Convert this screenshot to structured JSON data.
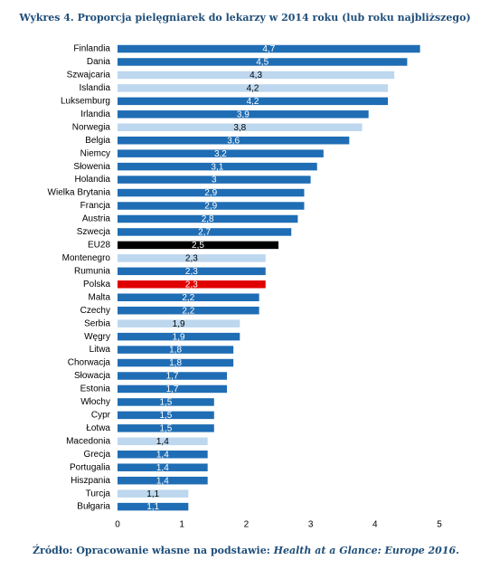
{
  "chart_data": {
    "type": "hbar",
    "title": "Wykres 4. Proporcja pielęgniarek do lekarzy w 2014 roku (lub roku najbliższego)",
    "categories": [
      "Finlandia",
      "Dania",
      "Szwajcaria",
      "Islandia",
      "Luksemburg",
      "Irlandia",
      "Norwegia",
      "Belgia",
      "Niemcy",
      "Słowenia",
      "Holandia",
      "Wielka Brytania",
      "Francja",
      "Austria",
      "Szwecja",
      "EU28",
      "Montenegro",
      "Rumunia",
      "Polska",
      "Malta",
      "Czechy",
      "Serbia",
      "Węgry",
      "Litwa",
      "Chorwacja",
      "Słowacja",
      "Estonia",
      "Włochy",
      "Cypr",
      "Łotwa",
      "Macedonia",
      "Grecja",
      "Portugalia",
      "Hiszpania",
      "Turcja",
      "Bułgaria"
    ],
    "values": [
      4.7,
      4.5,
      4.3,
      4.2,
      4.2,
      3.9,
      3.8,
      3.6,
      3.2,
      3.1,
      3,
      2.9,
      2.9,
      2.8,
      2.7,
      2.5,
      2.3,
      2.3,
      2.3,
      2.2,
      2.2,
      1.9,
      1.9,
      1.8,
      1.8,
      1.7,
      1.7,
      1.5,
      1.5,
      1.5,
      1.4,
      1.4,
      1.4,
      1.4,
      1.1,
      1.1
    ],
    "value_labels": [
      "4,7",
      "4,5",
      "4,3",
      "4,2",
      "4,2",
      "3,9",
      "3,8",
      "3,6",
      "3,2",
      "3,1",
      "3",
      "2,9",
      "2,9",
      "2,8",
      "2,7",
      "2,5",
      "2,3",
      "2,3",
      "2,3",
      "2,2",
      "2,2",
      "1,9",
      "1,9",
      "1,8",
      "1,8",
      "1,7",
      "1,7",
      "1,5",
      "1,5",
      "1,5",
      "1,4",
      "1,4",
      "1,4",
      "1,4",
      "1,1",
      "1,1"
    ],
    "colors": [
      "#1f6db4",
      "#1f6db4",
      "#bdd7ee",
      "#bdd7ee",
      "#1f6db4",
      "#1f6db4",
      "#bdd7ee",
      "#1f6db4",
      "#1f6db4",
      "#1f6db4",
      "#1f6db4",
      "#1f6db4",
      "#1f6db4",
      "#1f6db4",
      "#1f6db4",
      "#000000",
      "#bdd7ee",
      "#1f6db4",
      "#e00000",
      "#1f6db4",
      "#1f6db4",
      "#bdd7ee",
      "#1f6db4",
      "#1f6db4",
      "#1f6db4",
      "#1f6db4",
      "#1f6db4",
      "#1f6db4",
      "#1f6db4",
      "#1f6db4",
      "#bdd7ee",
      "#1f6db4",
      "#1f6db4",
      "#1f6db4",
      "#bdd7ee",
      "#1f6db4"
    ],
    "xlim": [
      0,
      5
    ],
    "xticks": [
      0,
      1,
      2,
      3,
      4,
      5
    ],
    "source": [
      "Źródło: Opracowanie własne na podstawie: ",
      "Health at a Glance: Europe 2016."
    ]
  }
}
